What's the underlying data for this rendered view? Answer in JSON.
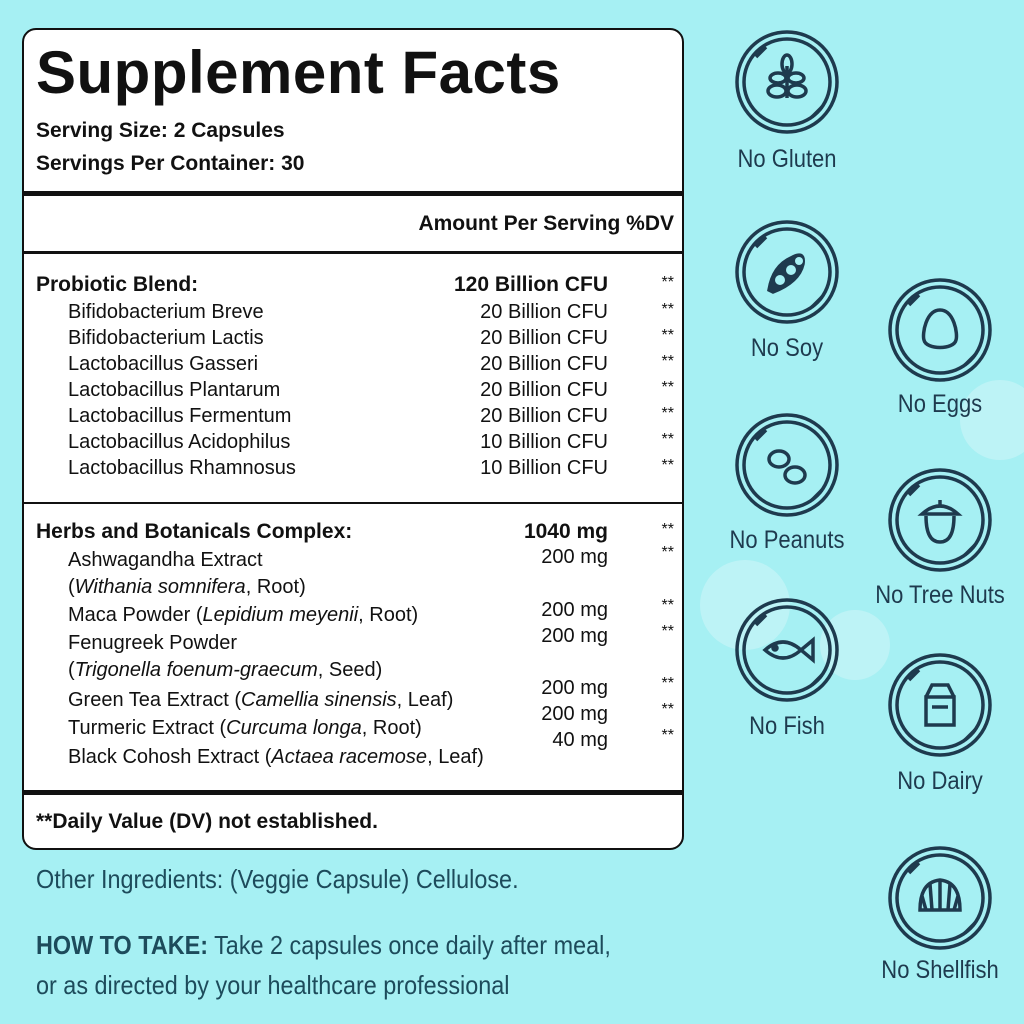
{
  "colors": {
    "background": "#a6f0f3",
    "icon": "#1e3a4e",
    "text_dark": "#1d4b5b",
    "panel": "#ffffff"
  },
  "facts": {
    "title": "Supplement Facts",
    "serving_size": "Serving Size: 2 Capsules",
    "servings_per_container": "Servings Per Container: 30",
    "column_header": "Amount Per Serving %DV",
    "probiotic": {
      "name": "Probiotic Blend:",
      "amount": "120 Billion CFU",
      "dv": "**",
      "items": [
        {
          "name": "Bifidobacterium Breve",
          "amount": "20 Billion CFU",
          "dv": "**"
        },
        {
          "name": "Bifidobacterium Lactis",
          "amount": "20 Billion CFU",
          "dv": "**"
        },
        {
          "name": "Lactobacillus Gasseri",
          "amount": "20 Billion CFU",
          "dv": "**"
        },
        {
          "name": "Lactobacillus Plantarum",
          "amount": "20 Billion CFU",
          "dv": "**"
        },
        {
          "name": "Lactobacillus Fermentum",
          "amount": "20 Billion CFU",
          "dv": "**"
        },
        {
          "name": "Lactobacillus Acidophilus",
          "amount": "10 Billion CFU",
          "dv": "**"
        },
        {
          "name": "Lactobacillus Rhamnosus",
          "amount": "10 Billion CFU",
          "dv": "**"
        }
      ]
    },
    "herbs": {
      "name": "Herbs and Botanicals Complex:",
      "amount": "1040 mg",
      "dv": "**",
      "items": [
        {
          "name": "Ashwagandha Extract",
          "latin": "Withania somnifera",
          "part": "Root",
          "amount": "200 mg",
          "dv": "**"
        },
        {
          "name": "Maca Powder",
          "latin": "Lepidium meyenii",
          "part": "Root",
          "amount": "200 mg",
          "dv": "**"
        },
        {
          "name": "Fenugreek Powder",
          "latin": "Trigonella foenum-graecum",
          "part": "Seed",
          "amount": "200 mg",
          "dv": "**"
        },
        {
          "name": "Green Tea Extract",
          "latin": "Camellia sinensis",
          "part": "Leaf",
          "amount": "200 mg",
          "dv": "**"
        },
        {
          "name": "Turmeric Extract",
          "latin": "Curcuma longa",
          "part": "Root",
          "amount": "200 mg",
          "dv": "**"
        },
        {
          "name": "Black Cohosh Extract",
          "latin": "Actaea racemose",
          "part": "Leaf",
          "amount": "40 mg",
          "dv": "**"
        }
      ]
    },
    "footnote": "**Daily Value (DV) not established."
  },
  "other_ingredients": "Other Ingredients: (Veggie Capsule) Cellulose.",
  "how_to_take": {
    "label": "HOW TO TAKE:",
    "line1": " Take 2 capsules once daily after meal,",
    "line2": "or as directed by your healthcare professional"
  },
  "badges": [
    {
      "label": "No Gluten",
      "icon": "wheat-icon"
    },
    {
      "label": "No Soy",
      "icon": "soybean-icon"
    },
    {
      "label": "No Eggs",
      "icon": "egg-icon"
    },
    {
      "label": "No Peanuts",
      "icon": "peanut-icon"
    },
    {
      "label": "No Tree Nuts",
      "icon": "acorn-icon"
    },
    {
      "label": "No Fish",
      "icon": "fish-icon"
    },
    {
      "label": "No Dairy",
      "icon": "milk-carton-icon"
    },
    {
      "label": "No Shellfish",
      "icon": "shell-icon"
    }
  ]
}
